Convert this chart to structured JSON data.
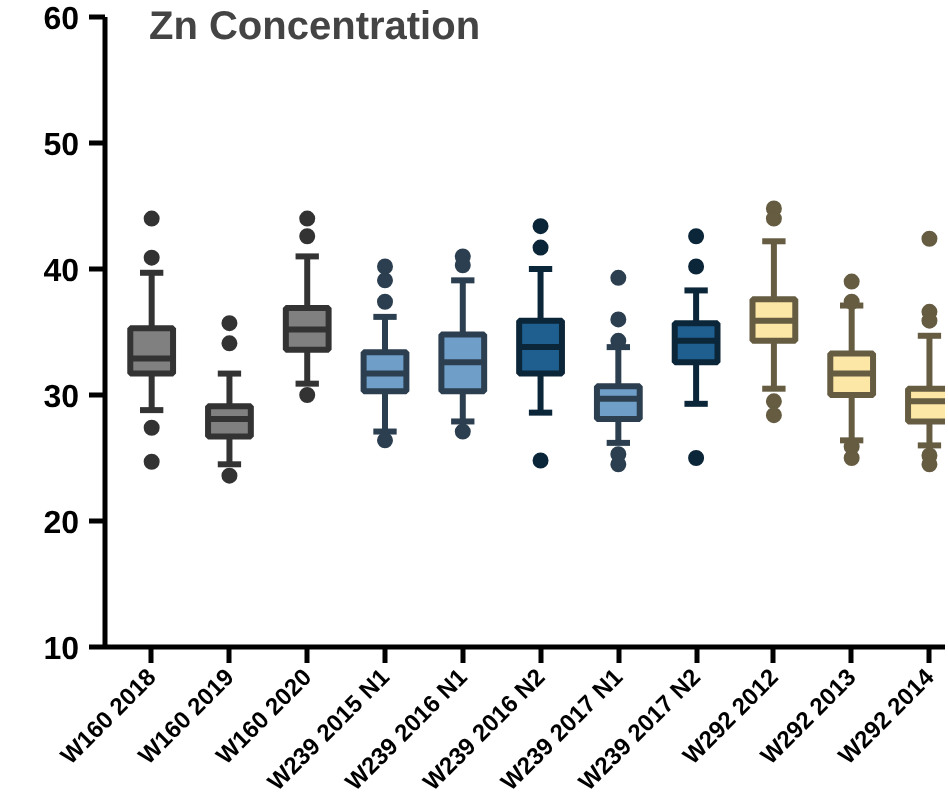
{
  "chart_data": {
    "type": "box",
    "title": "Zn Concentration",
    "categories": [
      "W160 2018",
      "W160 2019",
      "W160 2020",
      "W239 2015 N1",
      "W239 2016 N1",
      "W239 2016 N2",
      "W239 2017 N1",
      "W239 2017 N2",
      "W292 2012",
      "W292 2013",
      "W292 2014"
    ],
    "colors": [
      "#808080",
      "#808080",
      "#808080",
      "#6f9fc8",
      "#6f9fc8",
      "#1f5f8f",
      "#6f9fc8",
      "#1f5f8f",
      "#fde7a6",
      "#fde7a6",
      "#fde7a6"
    ],
    "boxes": [
      {
        "low": 28.8,
        "q1": 31.7,
        "median": 32.9,
        "q3": 35.3,
        "high": 39.7,
        "outliers": [
          44.0,
          40.9,
          27.4,
          24.7
        ]
      },
      {
        "low": 24.5,
        "q1": 26.7,
        "median": 28.1,
        "q3": 29.1,
        "high": 31.7,
        "outliers": [
          35.7,
          34.1,
          23.6
        ]
      },
      {
        "low": 30.9,
        "q1": 33.6,
        "median": 35.2,
        "q3": 36.9,
        "high": 41.0,
        "outliers": [
          44.0,
          42.6,
          30.0
        ]
      },
      {
        "low": 27.1,
        "q1": 30.3,
        "median": 31.7,
        "q3": 33.4,
        "high": 36.2,
        "outliers": [
          40.2,
          39.1,
          37.4,
          26.4
        ]
      },
      {
        "low": 27.9,
        "q1": 30.3,
        "median": 32.6,
        "q3": 34.8,
        "high": 39.1,
        "outliers": [
          41.0,
          40.3,
          27.1
        ]
      },
      {
        "low": 28.6,
        "q1": 31.7,
        "median": 33.8,
        "q3": 35.9,
        "high": 40.0,
        "outliers": [
          43.4,
          41.7,
          24.8
        ]
      },
      {
        "low": 26.2,
        "q1": 28.1,
        "median": 29.7,
        "q3": 30.7,
        "high": 33.8,
        "outliers": [
          39.3,
          36.0,
          34.3,
          25.3,
          24.5
        ]
      },
      {
        "low": 29.3,
        "q1": 32.6,
        "median": 34.3,
        "q3": 35.7,
        "high": 38.3,
        "outliers": [
          42.6,
          40.2,
          25.0
        ]
      },
      {
        "low": 30.5,
        "q1": 34.3,
        "median": 35.9,
        "q3": 37.6,
        "high": 42.2,
        "outliers": [
          44.8,
          44.0,
          29.5,
          28.4
        ]
      },
      {
        "low": 26.4,
        "q1": 30.0,
        "median": 31.7,
        "q3": 33.3,
        "high": 37.1,
        "outliers": [
          39.0,
          37.4,
          25.9,
          25.0
        ]
      },
      {
        "low": 26.0,
        "q1": 27.9,
        "median": 29.5,
        "q3": 30.5,
        "high": 34.7,
        "outliers": [
          42.4,
          36.6,
          35.9,
          25.2,
          24.5
        ]
      }
    ],
    "ylim": [
      10,
      60
    ],
    "yticks": [
      10,
      20,
      30,
      40,
      50,
      60
    ],
    "marker": "circle"
  }
}
